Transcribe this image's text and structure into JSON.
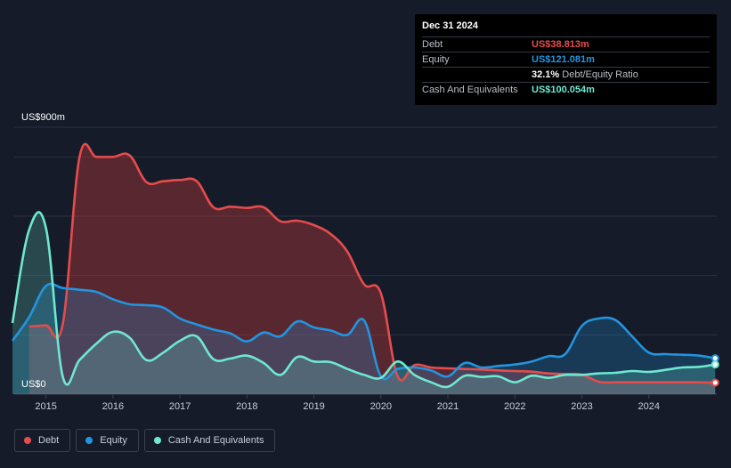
{
  "tooltip": {
    "date": "Dec 31 2024",
    "rows": {
      "debt": {
        "label": "Debt",
        "value": "US$38.813m"
      },
      "equity": {
        "label": "Equity",
        "value": "US$121.081m"
      },
      "ratio": {
        "value": "32.1%",
        "label": "Debt/Equity Ratio"
      },
      "cash": {
        "label": "Cash And Equivalents",
        "value": "US$100.054m"
      }
    }
  },
  "legend": {
    "items": [
      {
        "key": "debt",
        "label": "Debt"
      },
      {
        "key": "equity",
        "label": "Equity"
      },
      {
        "key": "cash",
        "label": "Cash And Equivalents"
      }
    ]
  },
  "chart_data": {
    "type": "area",
    "y_top_label": "US$900m",
    "y_bottom_label": "US$0",
    "ylim": [
      0,
      900
    ],
    "xlim": [
      2014.5,
      2025.0
    ],
    "x_ticks": [
      2015,
      2016,
      2017,
      2018,
      2019,
      2020,
      2021,
      2022,
      2023,
      2024
    ],
    "x_tick_labels": [
      "2015",
      "2016",
      "2017",
      "2018",
      "2019",
      "2020",
      "2021",
      "2022",
      "2023",
      "2024"
    ],
    "grid": true,
    "legend_position": "bottom-left",
    "colors": {
      "debt": "#e64c4c",
      "equity": "#2394df",
      "cash": "#6ee8d0"
    },
    "series": [
      {
        "key": "debt",
        "name": "Debt",
        "x": [
          2014.75,
          2015.0,
          2015.25,
          2015.5,
          2015.75,
          2016.0,
          2016.25,
          2016.5,
          2016.75,
          2017.0,
          2017.25,
          2017.5,
          2017.75,
          2018.0,
          2018.25,
          2018.5,
          2018.75,
          2019.0,
          2019.25,
          2019.5,
          2019.75,
          2020.0,
          2020.25,
          2020.5,
          2020.75,
          2021.0,
          2021.25,
          2021.5,
          2021.75,
          2022.0,
          2022.25,
          2022.5,
          2022.75,
          2023.0,
          2023.25,
          2023.5,
          2023.75,
          2024.0,
          2024.25,
          2024.5,
          2024.75,
          2024.99
        ],
        "values": [
          228,
          232,
          236,
          798,
          800,
          800,
          805,
          715,
          718,
          722,
          718,
          630,
          632,
          628,
          630,
          583,
          585,
          570,
          540,
          480,
          370,
          340,
          60,
          98,
          90,
          87,
          85,
          83,
          80,
          78,
          76,
          70,
          68,
          66,
          42,
          40,
          40,
          40,
          40,
          40,
          40,
          38.8
        ]
      },
      {
        "key": "equity",
        "name": "Equity",
        "x": [
          2014.5,
          2014.75,
          2015.0,
          2015.25,
          2015.5,
          2015.75,
          2016.0,
          2016.25,
          2016.5,
          2016.75,
          2017.0,
          2017.25,
          2017.5,
          2017.75,
          2018.0,
          2018.25,
          2018.5,
          2018.75,
          2019.0,
          2019.25,
          2019.5,
          2019.75,
          2020.0,
          2020.25,
          2020.5,
          2020.75,
          2021.0,
          2021.25,
          2021.5,
          2021.75,
          2022.0,
          2022.25,
          2022.5,
          2022.75,
          2023.0,
          2023.25,
          2023.5,
          2023.75,
          2024.0,
          2024.25,
          2024.5,
          2024.75,
          2024.99
        ],
        "values": [
          180,
          260,
          365,
          358,
          352,
          345,
          320,
          303,
          300,
          292,
          255,
          235,
          218,
          205,
          178,
          208,
          195,
          245,
          225,
          215,
          200,
          248,
          60,
          85,
          90,
          80,
          60,
          105,
          90,
          95,
          100,
          110,
          128,
          135,
          230,
          255,
          250,
          195,
          140,
          135,
          133,
          130,
          121
        ]
      },
      {
        "key": "cash",
        "name": "Cash And Equivalents",
        "x": [
          2014.5,
          2014.75,
          2015.0,
          2015.25,
          2015.5,
          2015.75,
          2016.0,
          2016.25,
          2016.5,
          2016.75,
          2017.0,
          2017.25,
          2017.5,
          2017.75,
          2018.0,
          2018.25,
          2018.5,
          2018.75,
          2019.0,
          2019.25,
          2019.5,
          2019.75,
          2020.0,
          2020.25,
          2020.5,
          2020.75,
          2021.0,
          2021.25,
          2021.5,
          2021.75,
          2022.0,
          2022.25,
          2022.5,
          2022.75,
          2023.0,
          2023.25,
          2023.5,
          2023.75,
          2024.0,
          2024.25,
          2024.5,
          2024.75,
          2024.99
        ],
        "values": [
          240,
          555,
          560,
          60,
          115,
          170,
          210,
          190,
          115,
          140,
          180,
          195,
          118,
          120,
          130,
          105,
          65,
          125,
          110,
          108,
          85,
          65,
          55,
          110,
          65,
          40,
          25,
          62,
          58,
          60,
          40,
          62,
          55,
          65,
          65,
          70,
          72,
          78,
          75,
          82,
          90,
          92,
          100
        ]
      }
    ]
  }
}
